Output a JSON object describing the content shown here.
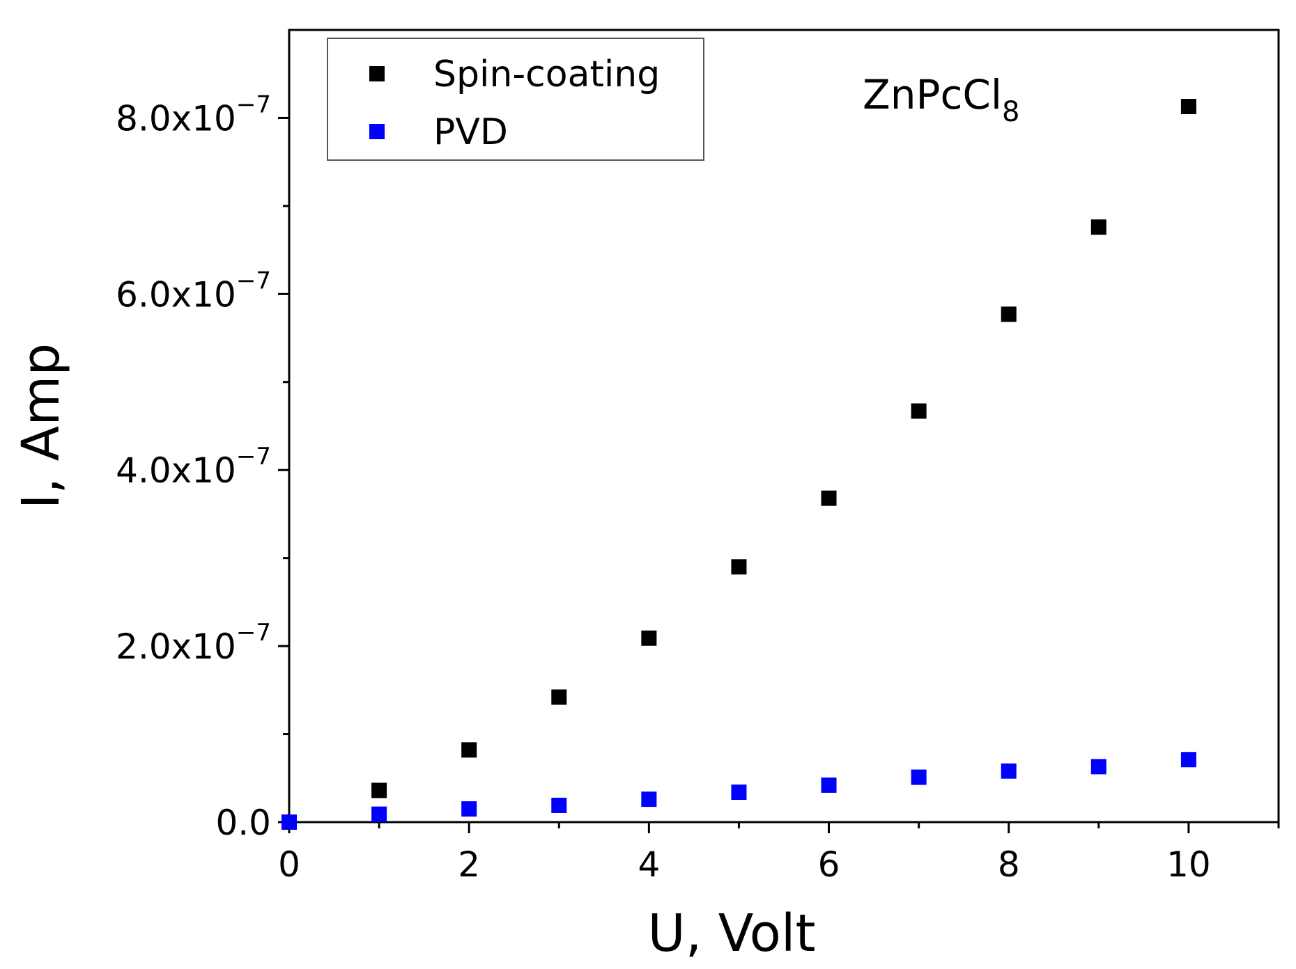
{
  "chart_data": {
    "type": "scatter",
    "title": "",
    "xlabel": "U, Volt",
    "ylabel": "I, Amp",
    "xlim": [
      0,
      11
    ],
    "ylim": [
      0,
      9e-07
    ],
    "grid": false,
    "legend_position": "top-left",
    "x_ticks": [
      0,
      2,
      4,
      6,
      8,
      10
    ],
    "x_tick_labels": [
      "0",
      "2",
      "4",
      "6",
      "8",
      "10"
    ],
    "y_ticks": [
      0,
      2e-07,
      4e-07,
      6e-07,
      8e-07
    ],
    "y_tick_labels": [
      {
        "mantissa": "0.0",
        "exponent": ""
      },
      {
        "mantissa": "2.0x10",
        "exponent": "−7"
      },
      {
        "mantissa": "4.0x10",
        "exponent": "−7"
      },
      {
        "mantissa": "6.0x10",
        "exponent": "−7"
      },
      {
        "mantissa": "8.0x10",
        "exponent": "−7"
      }
    ],
    "annotation": {
      "text": "ZnPcCl",
      "subscript": "8"
    },
    "series": [
      {
        "name": "Spin-coating",
        "color": "#000000",
        "marker": "square",
        "x": [
          0,
          1,
          2,
          3,
          4,
          5,
          6,
          7,
          8,
          9,
          10
        ],
        "y": [
          0,
          3.6e-08,
          8.2e-08,
          1.42e-07,
          2.09e-07,
          2.9e-07,
          3.68e-07,
          4.67e-07,
          5.77e-07,
          6.76e-07,
          8.13e-07
        ]
      },
      {
        "name": "PVD",
        "color": "#0000ff",
        "marker": "square",
        "x": [
          0,
          1,
          2,
          3,
          4,
          5,
          6,
          7,
          8,
          9,
          10
        ],
        "y": [
          0,
          9e-09,
          1.5e-08,
          1.9e-08,
          2.6e-08,
          3.4e-08,
          4.2e-08,
          5.1e-08,
          5.8e-08,
          6.3e-08,
          7.1e-08
        ]
      }
    ]
  }
}
